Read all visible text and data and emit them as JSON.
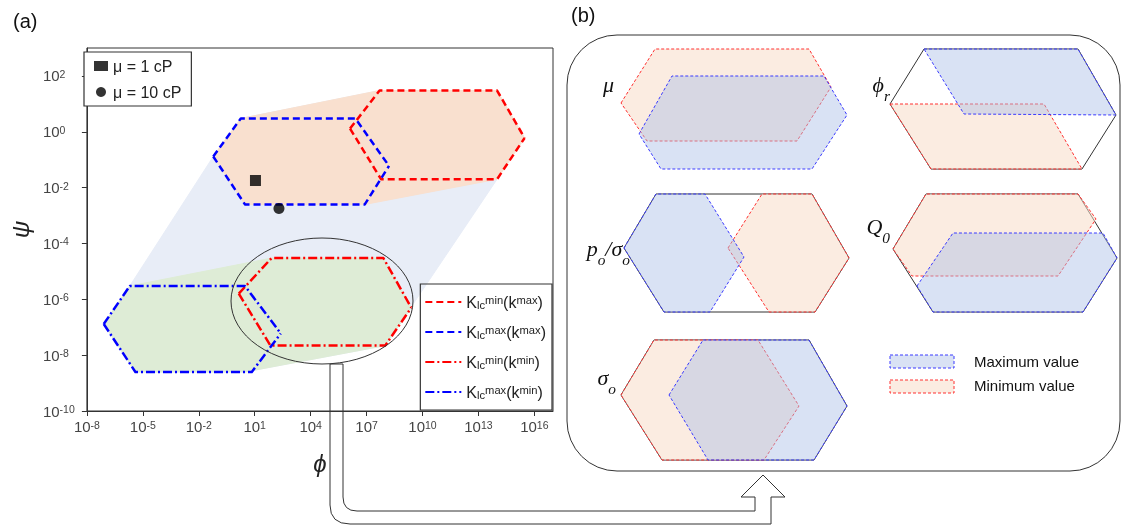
{
  "chart_data": [
    {
      "type": "line",
      "title": "(a)",
      "xlabel": "ϕ",
      "ylabel": "ψ",
      "log": "xy",
      "grid": false,
      "legend": "bottom right",
      "xlim": [
        1e-08,
        1e+17
      ],
      "ylim": [
        1e-10,
        1000.0
      ],
      "xticks": [
        {
          "value": 1e-08,
          "label": "10$^{-8}$"
        },
        {
          "value": 1e-05,
          "label": "10$^{-5}$"
        },
        {
          "value": 0.01,
          "label": "10$^{-2}$"
        },
        {
          "value": 10,
          "label": "10$^{1}$"
        },
        {
          "value": 10000.0,
          "label": "10$^{4}$"
        },
        {
          "value": 10000000.0,
          "label": "10$^{7}$"
        },
        {
          "value": 10000000000.0,
          "label": "10$^{10}$"
        },
        {
          "value": 10000000000000.0,
          "label": "10$^{13}$"
        },
        {
          "value": 1e+16,
          "label": "10$^{16}$"
        }
      ],
      "yticks": [
        {
          "value": 1e-10,
          "label": "10$^{-10}$"
        },
        {
          "value": 1e-08,
          "label": "10$^{-8}$"
        },
        {
          "value": 1e-06,
          "label": "10$^{-6}$"
        },
        {
          "value": 0.0001,
          "label": "10$^{-4}$"
        },
        {
          "value": 0.01,
          "label": "10$^{-2}$"
        },
        {
          "value": 1,
          "label": "10$^{0}$"
        },
        {
          "value": 100,
          "label": "10$^{2}$"
        }
      ],
      "series": [
        {
          "type": "area",
          "color": "#e8edf7",
          "x": [
            2e-06,
            0.06,
            1.8,
            50000000.0,
            100000000000000.0,
            3000000000000000.0,
            100000000000000.0,
            2500000000.0,
            100000000.0,
            3,
            4e-06,
            8e-08
          ],
          "values": [
            3e-06,
            0.13,
            3,
            30,
            30,
            0.6,
            0.02,
            null,
            2.2e-08,
            2.5e-09,
            2.5e-09,
            1.3e-07
          ]
        },
        {
          "type": "area",
          "color": "#f9e0cf",
          "x": [
            0.06,
            1.8,
            50000000.0,
            100000000000000.0,
            3000000000000000.0,
            100000000000000.0,
            8000000.0,
            3
          ],
          "values": [
            0.13,
            3,
            30,
            30,
            0.6,
            0.02,
            0.0025,
            0.0025
          ]
        },
        {
          "type": "area",
          "color": "#deecd6",
          "x": [
            8e-08,
            2e-06,
            80,
            80000000.0,
            2500000000.0,
            100000000.0,
            3,
            4e-06
          ],
          "values": [
            1.3e-07,
            3e-06,
            3e-05,
            3e-05,
            5e-07,
            2.2e-08,
            2.5e-09,
            2.5e-09
          ]
        },
        {
          "type": "line",
          "name": "K$_{lc}$$^{min}$(k$^{max}$)",
          "color": "#ff0000",
          "line_style": "dashed",
          "marker": "none",
          "x": [
            1300000.0,
            50000000.0,
            100000000000000.0,
            3000000000000000.0
          ],
          "values": [
            1.3,
            30,
            30,
            0.6
          ]
        },
        {
          "type": "line",
          "color": "#ff0000",
          "line_style": "dashed",
          "marker": "none",
          "x": [
            1300000.0,
            60000000.0,
            100000000000000.0,
            3000000000000000.0
          ],
          "values": [
            1.3,
            0.02,
            0.02,
            0.6
          ]
        },
        {
          "type": "line",
          "name": "K$_{lc}$$^{max}$(k$^{max}$)",
          "color": "#0000ff",
          "line_style": "dashed",
          "marker": "none",
          "x": [
            0.06,
            1.8,
            2500000.0,
            160000000.0
          ],
          "values": [
            0.13,
            3,
            3,
            0.06
          ]
        },
        {
          "type": "line",
          "color": "#0000ff",
          "line_style": "dashed",
          "marker": "none",
          "x": [
            0.06,
            3,
            8000000.0,
            160000000.0
          ],
          "values": [
            0.13,
            0.0025,
            0.0025,
            0.06
          ]
        },
        {
          "type": "line",
          "name": "K$_{lc}$$^{min}$(k$^{min}$)",
          "color": "#ff0000",
          "line_style": "dashdot",
          "marker": "none",
          "x": [
            1.4,
            80,
            80000000.0,
            2500000000.0
          ],
          "values": [
            1.6e-06,
            3e-05,
            3e-05,
            5e-07
          ]
        },
        {
          "type": "line",
          "color": "#ff0000",
          "line_style": "dashdot",
          "marker": "none",
          "x": [
            1.4,
            70,
            100000000.0,
            2500000000.0
          ],
          "values": [
            1.6e-06,
            2.2e-08,
            2.2e-08,
            5e-07
          ]
        },
        {
          "type": "line",
          "name": "K$_{lc}$$^{max}$(k$^{min}$)",
          "color": "#0000ff",
          "line_style": "dashdot",
          "marker": "none",
          "x": [
            8e-08,
            2e-06,
            3,
            250
          ],
          "values": [
            1.3e-07,
            3e-06,
            3e-06,
            6e-08
          ]
        },
        {
          "type": "line",
          "color": "#0000ff",
          "line_style": "dashdot",
          "marker": "none",
          "x": [
            8e-08,
            4e-06,
            7,
            250
          ],
          "values": [
            1.3e-07,
            2.5e-09,
            2.5e-09,
            6e-08
          ]
        },
        {
          "type": "scatter",
          "name": "μ = 1 cP",
          "color": "#000000",
          "marker": "square",
          "x": [
            11
          ],
          "values": [
            0.018
          ]
        },
        {
          "type": "scatter",
          "name": "μ = 10 cP",
          "color": "#000000",
          "marker": "circle",
          "x": [
            200
          ],
          "values": [
            0.0018
          ]
        }
      ]
    },
    {
      "type": "other",
      "title": "(b)",
      "annotations": [
        "μ",
        "ϕ$_{r}$",
        "p$_{o}$/σ$_{o}$",
        "Q$_{0}$",
        "σ$_{o}$",
        "Maximum value",
        "Minimum value"
      ]
    }
  ]
}
